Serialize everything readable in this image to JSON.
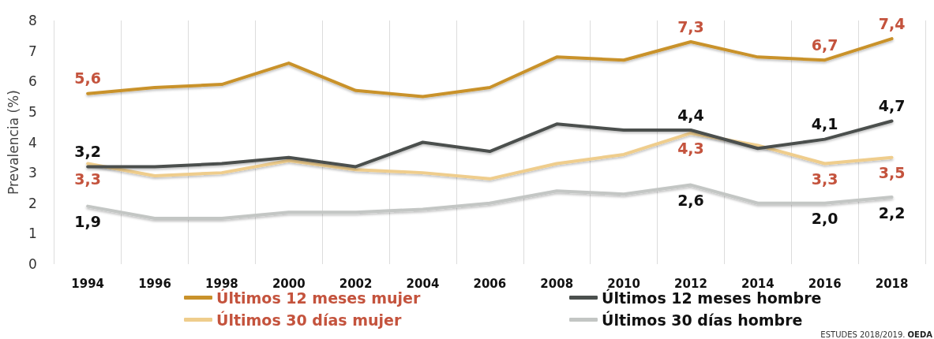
{
  "chart_data": {
    "type": "line",
    "ylabel": "Prevalencia (%)",
    "categories": [
      "1994",
      "1996",
      "1998",
      "2000",
      "2002",
      "2004",
      "2006",
      "2008",
      "2010",
      "2012",
      "2014",
      "2016",
      "2018"
    ],
    "series": [
      {
        "name": "Últimos 12 meses mujer",
        "color": "#c9922b",
        "values": [
          5.6,
          5.8,
          5.9,
          6.6,
          5.7,
          5.5,
          5.8,
          6.8,
          6.7,
          7.3,
          6.8,
          6.7,
          7.4
        ],
        "value_labels": [
          "5,6",
          null,
          null,
          null,
          null,
          null,
          null,
          null,
          null,
          "7,3",
          null,
          "6,7",
          "7,4"
        ]
      },
      {
        "name": "Últimos 12 meses hombre",
        "color": "#4b504e",
        "values": [
          3.2,
          3.2,
          3.3,
          3.5,
          3.2,
          4.0,
          3.7,
          4.6,
          4.4,
          4.4,
          3.8,
          4.1,
          4.7
        ],
        "value_labels": [
          "3,2",
          null,
          null,
          null,
          null,
          null,
          null,
          null,
          null,
          "4,4",
          null,
          "4,1",
          "4,7"
        ]
      },
      {
        "name": "Últimos 30 días mujer",
        "color": "#efcd8c",
        "values": [
          3.3,
          2.9,
          3.0,
          3.4,
          3.1,
          3.0,
          2.8,
          3.3,
          3.6,
          4.3,
          3.9,
          3.3,
          3.5
        ],
        "value_labels": [
          "3,3",
          null,
          null,
          null,
          null,
          null,
          null,
          null,
          null,
          "4,3",
          null,
          "3,3",
          "3,5"
        ]
      },
      {
        "name": "Últimos 30 días hombre",
        "color": "#c3c6c4",
        "values": [
          1.9,
          1.5,
          1.5,
          1.7,
          1.7,
          1.8,
          2.0,
          2.4,
          2.3,
          2.6,
          2.0,
          2.0,
          2.2
        ],
        "value_labels": [
          "1,9",
          null,
          null,
          null,
          null,
          null,
          null,
          null,
          null,
          "2,6",
          null,
          "2,0",
          "2,2"
        ]
      }
    ],
    "ylim": [
      0,
      8
    ],
    "yticks": [
      0,
      1,
      2,
      3,
      4,
      5,
      6,
      7,
      8
    ],
    "grid": "x",
    "legend": "bottom",
    "marker": "none",
    "line_style": "solid",
    "annotations": [
      "ESTUDES 2018/2019. OEDA"
    ]
  }
}
